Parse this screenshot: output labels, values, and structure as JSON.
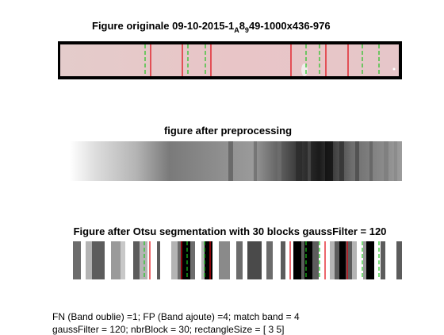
{
  "fig1": {
    "title_pre": "Figure originale 09-10-2015-1",
    "title_a": "A",
    "title_8": "8",
    "title_9": "9",
    "title_post": "49-1000x436-976"
  },
  "fig2": {
    "title": "figure after preprocessing"
  },
  "fig3": {
    "title": "Figure after Otsu segmentation with 30 blocks gaussFilter = 120"
  },
  "caption": {
    "line1": "FN (Band oublie) =1; FP (Band ajoute) =4; match band = 4",
    "line2": "gaussFilter = 120; nbrBlock = 30; rectangleSize = [ 3  5]"
  },
  "colors": {
    "red_band": "#e0000a",
    "green_band": "#1fc41f",
    "strip_pink": "#e6c8c8"
  }
}
